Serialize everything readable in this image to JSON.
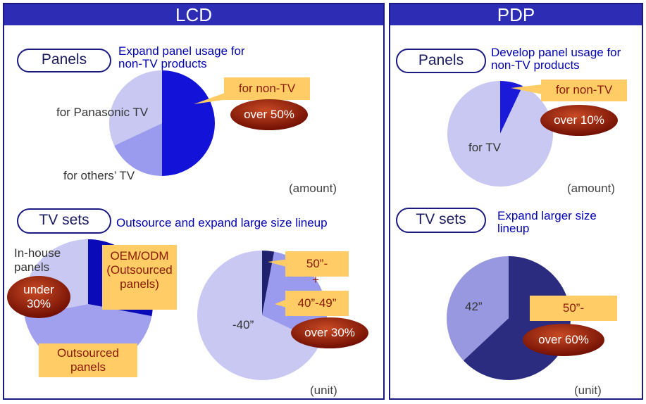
{
  "panels": [
    {
      "title": "LCD",
      "sections": [
        {
          "label": "Panels",
          "description": "Expand panel usage for non-TV products",
          "chart": {
            "type": "pie",
            "categories": [
              "for non-TV",
              "for others’ TV",
              "for Panasonic TV"
            ],
            "values": [
              50,
              18,
              32
            ],
            "colors": [
              "#1212d8",
              "#9a9aee",
              "#c8c8f2"
            ],
            "annotations": [
              "over 50%"
            ],
            "note": "(amount)"
          }
        },
        {
          "label": "TV sets",
          "description": "Outsource and expand large size lineup",
          "charts": [
            {
              "type": "pie",
              "categories": [
                "OEM/ODM (Outsourced panels)",
                "Outsourced panels",
                "In-house panels"
              ],
              "values": [
                28,
                44,
                28
              ],
              "colors": [
                "#0a0ab8",
                "#a0a0ee",
                "#c8c8f2"
              ],
              "annotations": [
                "under 30%"
              ]
            },
            {
              "type": "pie",
              "categories": [
                "50”-",
                "40”-49”",
                "-40”"
              ],
              "values": [
                3,
                29,
                68
              ],
              "colors": [
                "#202070",
                "#9a9aee",
                "#c8c8f2"
              ],
              "annotations": [
                "+",
                "over 30%"
              ],
              "note": "(unit)"
            }
          ]
        }
      ]
    },
    {
      "title": "PDP",
      "sections": [
        {
          "label": "Panels",
          "description": "Develop panel usage for non-TV products",
          "chart": {
            "type": "pie",
            "categories": [
              "for non-TV",
              "for TV"
            ],
            "values": [
              7,
              93
            ],
            "colors": [
              "#1a1ad8",
              "#c8c8f2"
            ],
            "annotations": [
              "over 10%"
            ],
            "note": "(amount)"
          }
        },
        {
          "label": "TV sets",
          "description": "Expand larger size lineup",
          "chart": {
            "type": "pie",
            "categories": [
              "50”-",
              "42”"
            ],
            "values": [
              63,
              37
            ],
            "colors": [
              "#2b2b80",
              "#9898e0"
            ],
            "annotations": [
              "over 60%"
            ],
            "note": "(unit)"
          }
        }
      ]
    }
  ]
}
